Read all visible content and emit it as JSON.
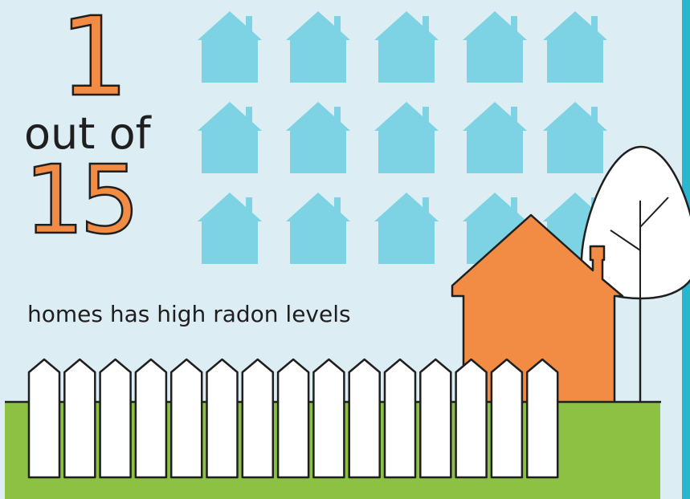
{
  "stat": {
    "number_one": "1",
    "out_of": "out of",
    "number_fifteen": "15",
    "caption": "homes has high radon levels"
  },
  "houses": {
    "total": 15,
    "affected": 1,
    "icon": "house-icon"
  },
  "colors": {
    "background": "#dcedf4",
    "house_icon": "#7dd3e3",
    "highlight_house": "#f28c44",
    "grass": "#8dc143",
    "fence": "#ffffff",
    "outline": "#1f1f1f",
    "right_stripe": "#29b6cf"
  }
}
